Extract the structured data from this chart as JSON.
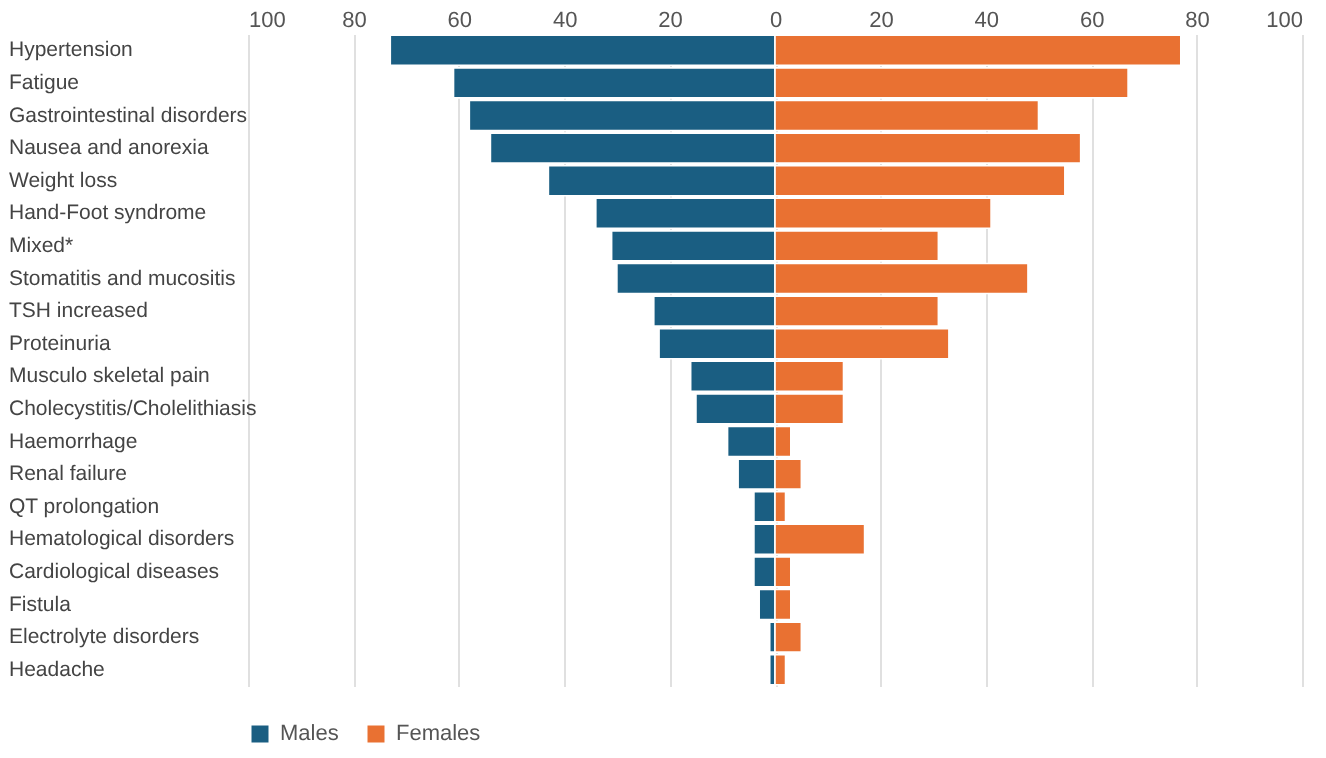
{
  "chart_data": {
    "type": "bar",
    "orientation": "horizontal",
    "stacked": true,
    "categories": [
      "Hypertension",
      "Fatigue",
      "Gastrointestinal disorders",
      "Nausea and anorexia",
      "Weight loss",
      "Hand-Foot syndrome",
      "Mixed*",
      "Stomatitis and mucositis",
      "TSH increased",
      "Proteinuria",
      "Musculo skeletal pain",
      "Cholecystitis/Cholelithiasis",
      "Haemorrhage",
      "Renal failure",
      "QT prolongation",
      "Hematological disorders",
      "Cardiological diseases",
      "Fistula",
      "Electrolyte disorders",
      "Headache"
    ],
    "series": [
      {
        "name": "Males",
        "color": "#1a5e82",
        "values": [
          -73,
          -61,
          -58,
          -54,
          -43,
          -34,
          -31,
          -30,
          -23,
          -22,
          -16,
          -15,
          -9,
          -7,
          -4,
          -4,
          -4,
          -3,
          -1,
          -1
        ]
      },
      {
        "name": "Females",
        "color": "#e97132",
        "values": [
          77,
          67,
          50,
          58,
          55,
          41,
          31,
          48,
          31,
          33,
          13,
          13,
          3,
          5,
          2,
          17,
          3,
          3,
          5,
          2
        ]
      }
    ],
    "xlim": [
      -100,
      100
    ],
    "xticks": [
      {
        "value": -100,
        "label": "100"
      },
      {
        "value": -80,
        "label": "80"
      },
      {
        "value": -60,
        "label": "60"
      },
      {
        "value": -40,
        "label": "40"
      },
      {
        "value": -20,
        "label": "20"
      },
      0,
      20,
      40,
      60,
      80,
      100
    ],
    "grid": "x",
    "legend": "bottom"
  }
}
